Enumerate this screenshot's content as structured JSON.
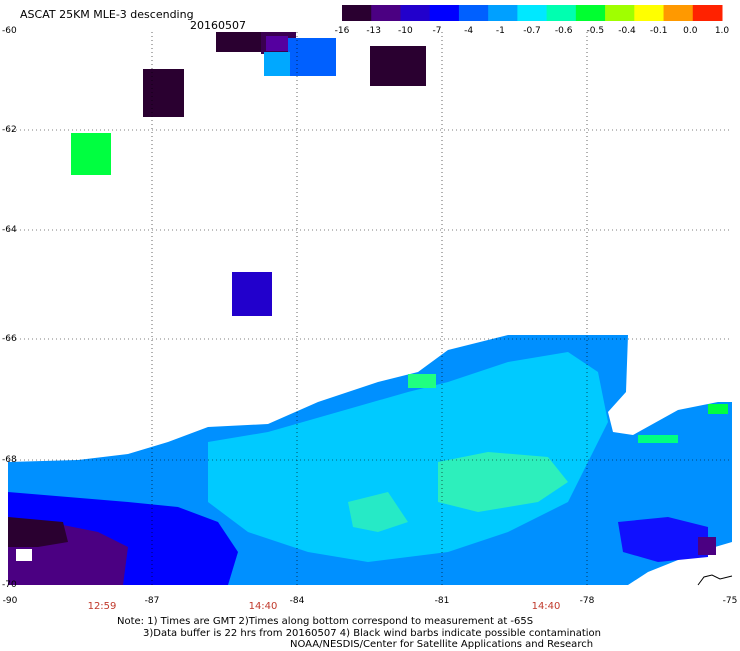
{
  "header": {
    "title": "ASCAT 25KM MLE-3 descending",
    "date": "20160507"
  },
  "colorbar": {
    "labels": [
      "-16",
      "-13",
      "-10",
      "-7",
      "-4",
      "-1",
      "-0.7",
      "-0.6",
      "-0.5",
      "-0.4",
      "-0.1",
      "0.0",
      "1.0"
    ],
    "colors": [
      "#2a0030",
      "#4b0082",
      "#2200cc",
      "#0000ff",
      "#0060ff",
      "#00a0ff",
      "#00e8ff",
      "#00ffb0",
      "#00ff30",
      "#a0ff00",
      "#ffff00",
      "#ff9900",
      "#ff2200"
    ]
  },
  "axes": {
    "y_labels": [
      "-60",
      "-62",
      "-64",
      "-66",
      "-68",
      "-70"
    ],
    "x_labels": [
      "-90",
      "-87",
      "-84",
      "-81",
      "-78",
      "-75"
    ]
  },
  "times": [
    "12:59",
    "14:40",
    "14:40"
  ],
  "notes": {
    "line1": "Note: 1) Times are GMT 2)Times along bottom correspond to measurement at -65S",
    "line2": "3)Data buffer is 22 hrs from 20160507 4) Black wind barbs indicate possible contamination",
    "line3": "NOAA/NESDIS/Center for Satellite Applications and Research"
  }
}
